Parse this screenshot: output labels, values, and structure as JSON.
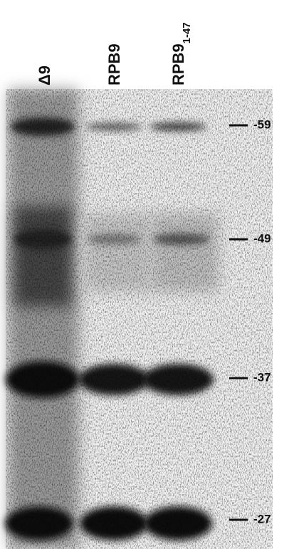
{
  "lanes": [
    {
      "label": "Δ9"
    },
    {
      "label": "RPB9"
    },
    {
      "label": "RPB9",
      "subscript": "1-47"
    }
  ],
  "markers": [
    "-59",
    "-49",
    "-37",
    "-27"
  ]
}
